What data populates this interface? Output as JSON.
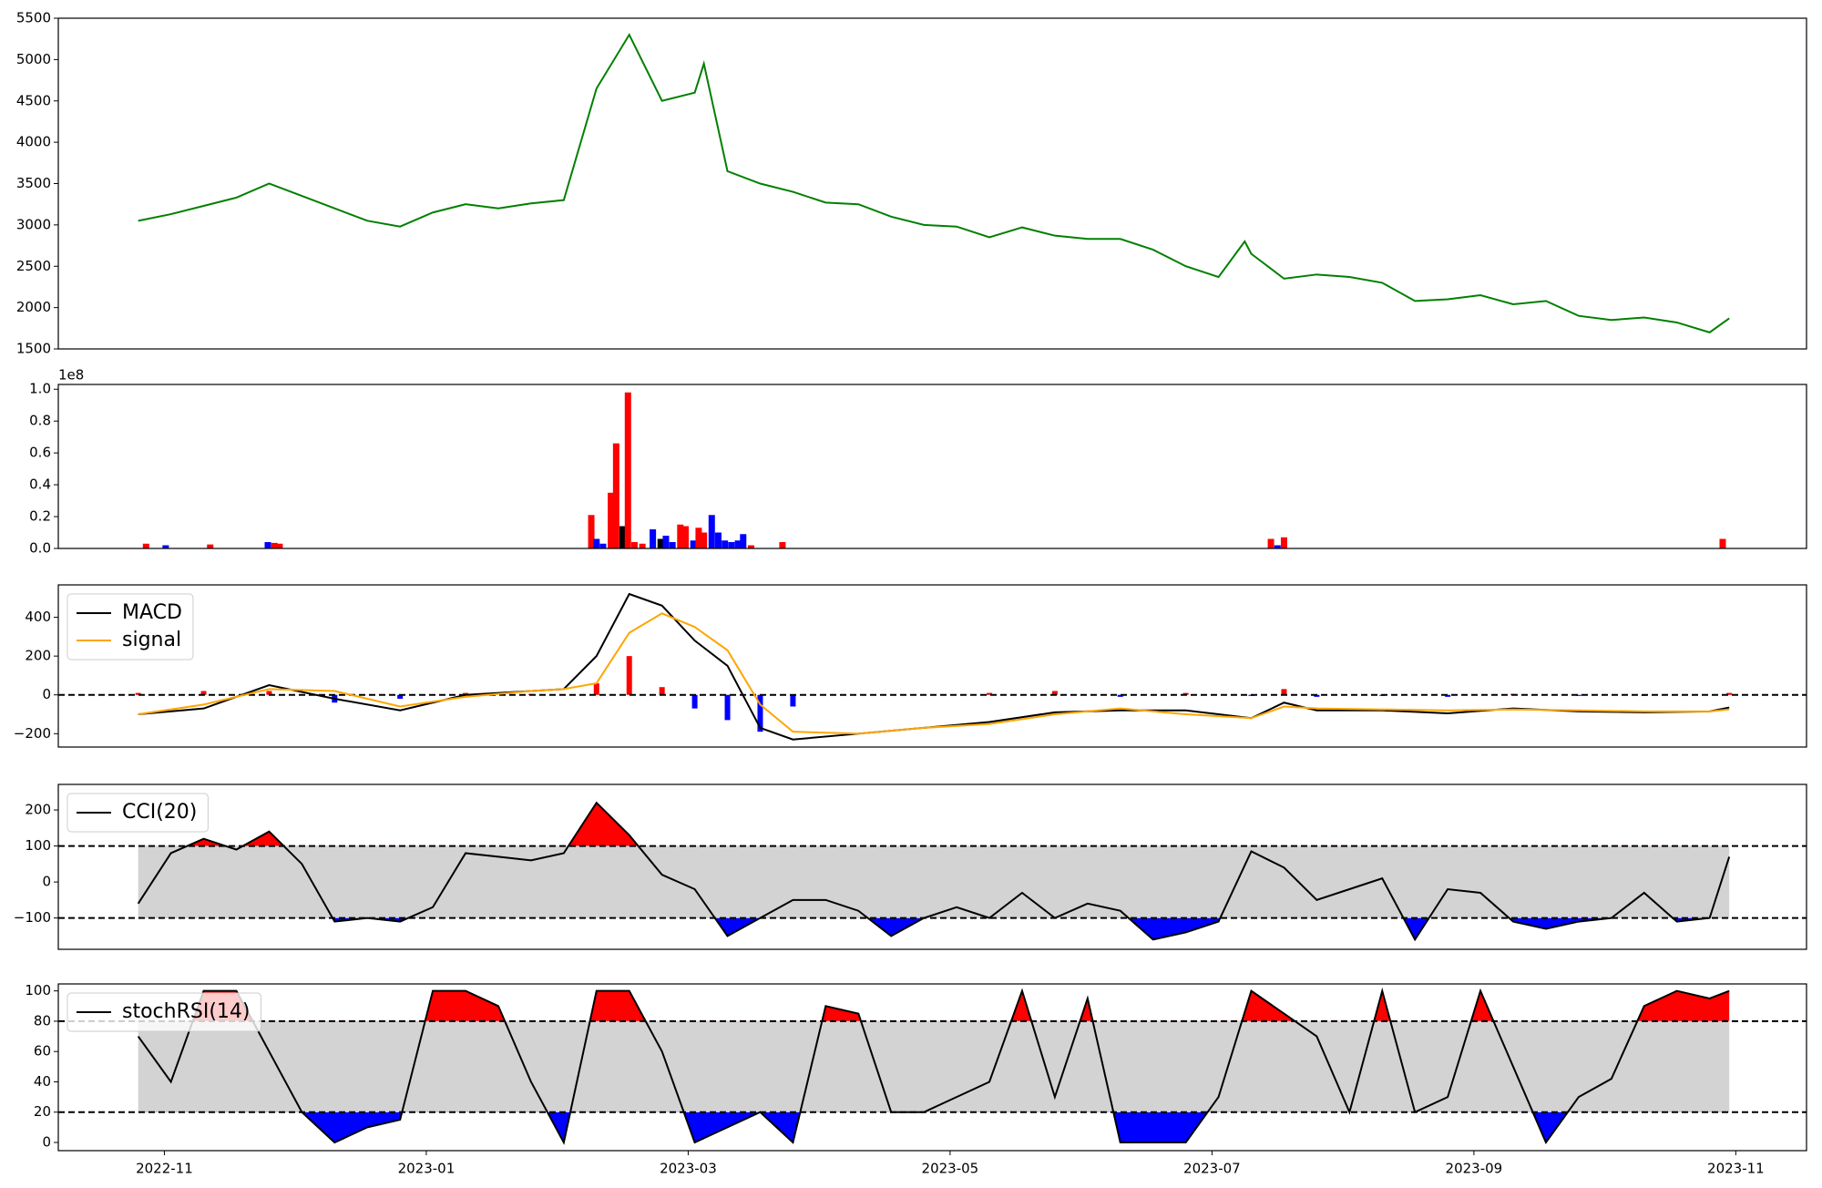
{
  "chart_data": [
    {
      "type": "line",
      "color": "green",
      "x": [
        9.8,
        10.05,
        10.3,
        10.55,
        10.8,
        11.05,
        11.3,
        11.55,
        11.8,
        12.05,
        12.3,
        12.55,
        12.8,
        13.05,
        13.3,
        13.55,
        13.8,
        14.05,
        14.12,
        14.3,
        14.55,
        14.8,
        15.05,
        15.3,
        15.55,
        15.8,
        16.05,
        16.3,
        16.55,
        16.8,
        17.05,
        17.3,
        17.55,
        17.8,
        18.05,
        18.25,
        18.3,
        18.55,
        18.8,
        19.05,
        19.3,
        19.55,
        19.8,
        20.05,
        20.3,
        20.55,
        20.8,
        21.05,
        21.3,
        21.55,
        21.8,
        21.95
      ],
      "values": [
        3050,
        3130,
        3230,
        3330,
        3500,
        3350,
        3200,
        3050,
        2980,
        3150,
        3250,
        3200,
        3260,
        3300,
        4650,
        5300,
        4500,
        4600,
        4950,
        3650,
        3500,
        3400,
        3270,
        3250,
        3100,
        3000,
        2980,
        2850,
        2970,
        2870,
        2830,
        2830,
        2700,
        2500,
        2370,
        2800,
        2650,
        2350,
        2400,
        2370,
        2300,
        2080,
        2100,
        2150,
        2040,
        2080,
        1900,
        1850,
        1880,
        1820,
        1700,
        1870
      ],
      "xlim": [
        9.19,
        22.54
      ],
      "ylim": [
        1500,
        5500
      ],
      "yticks": [
        1500,
        2000,
        2500,
        3000,
        3500,
        4000,
        4500,
        5000,
        5500
      ]
    },
    {
      "type": "bar",
      "offset_label": "1e8",
      "x": [
        9.86,
        10.01,
        10.35,
        10.79,
        10.84,
        10.88,
        13.26,
        13.3,
        13.35,
        13.41,
        13.45,
        13.5,
        13.54,
        13.59,
        13.65,
        13.73,
        13.79,
        13.83,
        13.88,
        13.94,
        13.98,
        14.04,
        14.08,
        14.12,
        14.18,
        14.23,
        14.28,
        14.33,
        14.38,
        14.42,
        14.48,
        14.72,
        18.45,
        18.5,
        18.55,
        21.9
      ],
      "values": [
        0.03,
        0.02,
        0.025,
        0.04,
        0.035,
        0.03,
        0.21,
        0.06,
        0.03,
        0.35,
        0.66,
        0.14,
        0.98,
        0.04,
        0.03,
        0.12,
        0.06,
        0.08,
        0.04,
        0.15,
        0.14,
        0.05,
        0.13,
        0.1,
        0.21,
        0.1,
        0.05,
        0.04,
        0.05,
        0.09,
        0.02,
        0.04,
        0.06,
        0.02,
        0.07,
        0.06
      ],
      "colors": [
        "red",
        "blue",
        "red",
        "blue",
        "red",
        "red",
        "red",
        "blue",
        "blue",
        "red",
        "red",
        "black",
        "red",
        "red",
        "red",
        "blue",
        "black",
        "blue",
        "blue",
        "red",
        "red",
        "blue",
        "red",
        "red",
        "blue",
        "blue",
        "blue",
        "blue",
        "blue",
        "blue",
        "red",
        "red",
        "red",
        "blue",
        "red",
        "red"
      ],
      "xlim": [
        9.19,
        22.54
      ],
      "ylim": [
        0,
        1.03
      ],
      "yticks": [
        {
          "value": 0,
          "label": "0.0"
        },
        {
          "value": 0.2,
          "label": "0.2"
        },
        {
          "value": 0.4,
          "label": "0.4"
        },
        {
          "value": 0.6,
          "label": "0.6"
        },
        {
          "value": 0.8,
          "label": "0.8"
        },
        {
          "value": 1,
          "label": "1.0"
        }
      ]
    },
    {
      "type": "line",
      "legend": "upper left",
      "hlines": [
        0
      ],
      "x": [
        9.8,
        10.3,
        10.8,
        11.3,
        11.8,
        12.3,
        12.8,
        13.05,
        13.3,
        13.55,
        13.8,
        14.05,
        14.3,
        14.55,
        14.8,
        15.3,
        15.8,
        16.3,
        16.8,
        17.3,
        17.8,
        18.3,
        18.55,
        18.8,
        19.3,
        19.8,
        20.3,
        20.8,
        21.3,
        21.8,
        21.95
      ],
      "series": [
        {
          "name": "MACD",
          "color": "black",
          "values": [
            -100,
            -70,
            50,
            -20,
            -80,
            0,
            20,
            30,
            200,
            520,
            460,
            280,
            150,
            -170,
            -230,
            -200,
            -170,
            -140,
            -90,
            -80,
            -80,
            -120,
            -40,
            -80,
            -80,
            -95,
            -70,
            -85,
            -90,
            -85,
            -65
          ]
        },
        {
          "name": "signal",
          "color": "orange",
          "values": [
            -100,
            -50,
            30,
            20,
            -60,
            -10,
            20,
            30,
            60,
            320,
            420,
            350,
            230,
            -50,
            -190,
            -200,
            -170,
            -150,
            -100,
            -70,
            -100,
            -120,
            -60,
            -70,
            -75,
            -80,
            -75,
            -80,
            -85,
            -85,
            -75
          ]
        }
      ],
      "histogram": {
        "values": [
          10,
          20,
          20,
          -40,
          -20,
          10,
          5,
          0,
          60,
          200,
          40,
          -70,
          -130,
          -190,
          -60,
          0,
          0,
          10,
          20,
          -10,
          10,
          -5,
          30,
          -10,
          -5,
          -10,
          5,
          -5,
          -5,
          0,
          10
        ],
        "up_color": "red",
        "down_color": "blue"
      },
      "xlim": [
        9.19,
        22.54
      ],
      "ylim": [
        -269,
        567
      ],
      "yticks": [
        {
          "value": -200,
          "label": "−200"
        },
        0,
        200,
        400
      ]
    },
    {
      "type": "line",
      "legend": "upper left",
      "hlines": [
        100,
        -100
      ],
      "fill": {
        "band_color": "lightgray",
        "above_color": "red",
        "below_color": "blue"
      },
      "x": [
        9.8,
        10.05,
        10.3,
        10.55,
        10.8,
        11.05,
        11.3,
        11.55,
        11.8,
        12.05,
        12.3,
        12.55,
        12.8,
        13.05,
        13.3,
        13.55,
        13.8,
        14.05,
        14.3,
        14.55,
        14.8,
        15.05,
        15.3,
        15.55,
        15.8,
        16.05,
        16.3,
        16.55,
        16.8,
        17.05,
        17.3,
        17.55,
        17.8,
        18.05,
        18.3,
        18.55,
        18.8,
        19.05,
        19.3,
        19.55,
        19.8,
        20.05,
        20.3,
        20.55,
        20.8,
        21.05,
        21.3,
        21.55,
        21.8,
        21.95
      ],
      "series": [
        {
          "name": "CCI(20)",
          "color": "black",
          "values": [
            -60,
            80,
            120,
            90,
            140,
            50,
            -110,
            -100,
            -110,
            -70,
            80,
            70,
            60,
            80,
            220,
            130,
            20,
            -20,
            -150,
            -100,
            -50,
            -50,
            -80,
            -150,
            -100,
            -70,
            -100,
            -30,
            -100,
            -60,
            -80,
            -160,
            -140,
            -110,
            85,
            40,
            -50,
            -20,
            10,
            -160,
            -20,
            -30,
            -110,
            -130,
            -110,
            -100,
            -30,
            -110,
            -100,
            70
          ]
        }
      ],
      "xlim": [
        9.19,
        22.54
      ],
      "ylim": [
        -187,
        271
      ],
      "yticks": [
        {
          "value": -100,
          "label": "−100"
        },
        0,
        100,
        200
      ]
    },
    {
      "type": "line",
      "legend": "upper left",
      "hlines": [
        80,
        20
      ],
      "fill": {
        "band_color": "lightgray",
        "above_color": "red",
        "below_color": "blue"
      },
      "x": [
        9.8,
        10.05,
        10.3,
        10.55,
        10.8,
        11.05,
        11.3,
        11.55,
        11.8,
        12.05,
        12.3,
        12.55,
        12.8,
        13.05,
        13.3,
        13.55,
        13.8,
        14.05,
        14.3,
        14.55,
        14.8,
        15.05,
        15.3,
        15.55,
        15.8,
        16.05,
        16.3,
        16.55,
        16.8,
        17.05,
        17.3,
        17.55,
        17.8,
        18.05,
        18.3,
        18.55,
        18.8,
        19.05,
        19.3,
        19.55,
        19.8,
        20.05,
        20.3,
        20.55,
        20.8,
        21.05,
        21.3,
        21.55,
        21.8,
        21.95
      ],
      "series": [
        {
          "name": "stochRSI(14)",
          "color": "black",
          "values": [
            70,
            40,
            100,
            100,
            60,
            20,
            0,
            10,
            15,
            100,
            100,
            90,
            40,
            0,
            100,
            100,
            60,
            0,
            10,
            20,
            0,
            90,
            85,
            20,
            20,
            30,
            40,
            100,
            30,
            95,
            0,
            0,
            0,
            30,
            100,
            85,
            70,
            20,
            100,
            20,
            30,
            100,
            50,
            0,
            30,
            42,
            90,
            100,
            95,
            100
          ]
        }
      ],
      "xlim": [
        9.19,
        22.54
      ],
      "ylim": [
        -5.4,
        104.6
      ],
      "yticks": [
        0,
        20,
        40,
        60,
        80,
        100
      ],
      "xticks": [
        {
          "value": 10,
          "label": "2022-11"
        },
        {
          "value": 12,
          "label": "2023-01"
        },
        {
          "value": 14,
          "label": "2023-03"
        },
        {
          "value": 16,
          "label": "2023-05"
        },
        {
          "value": 18,
          "label": "2023-07"
        },
        {
          "value": 20,
          "label": "2023-09"
        },
        {
          "value": 22,
          "label": "2023-11"
        }
      ]
    }
  ]
}
